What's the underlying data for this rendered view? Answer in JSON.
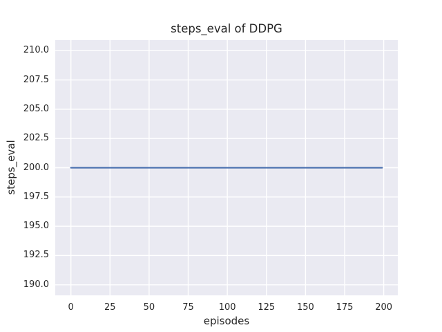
{
  "chart_data": {
    "type": "line",
    "title": "steps_eval of DDPG",
    "xlabel": "episodes",
    "ylabel": "steps_eval",
    "x_ticks": [
      0,
      25,
      50,
      75,
      100,
      125,
      150,
      175,
      200
    ],
    "x_tick_labels": [
      "0",
      "25",
      "50",
      "75",
      "100",
      "125",
      "150",
      "175",
      "200"
    ],
    "y_ticks": [
      190.0,
      192.5,
      195.0,
      197.5,
      200.0,
      202.5,
      205.0,
      207.5,
      210.0
    ],
    "y_tick_labels": [
      "190.0",
      "192.5",
      "195.0",
      "197.5",
      "200.0",
      "202.5",
      "205.0",
      "207.5",
      "210.0"
    ],
    "xlim": [
      -10,
      209
    ],
    "ylim": [
      189.1,
      210.9
    ],
    "grid": true,
    "legend": null,
    "series": [
      {
        "name": "steps_eval",
        "color": "#4c72b0",
        "x": [
          0,
          199
        ],
        "y": [
          200.0,
          200.0
        ]
      }
    ],
    "colors": {
      "plot_background": "#eaeaf2",
      "grid_line": "#ffffff",
      "text": "#262626",
      "figure_background": "#ffffff"
    }
  }
}
